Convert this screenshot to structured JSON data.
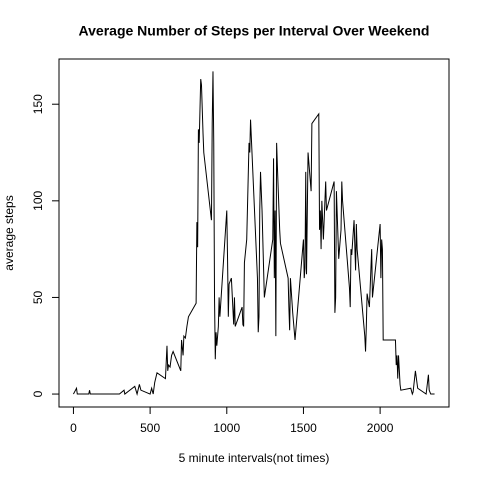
{
  "chart_data": {
    "type": "line",
    "title": "Average Number of Steps per Interval Over Weekend",
    "xlabel": "5 minute intervals(not times)",
    "ylabel": "average steps",
    "x": [
      0,
      20,
      25,
      100,
      105,
      110,
      300,
      330,
      335,
      400,
      415,
      430,
      440,
      500,
      510,
      520,
      530,
      545,
      600,
      610,
      615,
      620,
      630,
      640,
      650,
      700,
      705,
      715,
      720,
      730,
      740,
      750,
      800,
      805,
      810,
      815,
      820,
      830,
      835,
      845,
      850,
      900,
      905,
      910,
      915,
      920,
      925,
      930,
      935,
      945,
      950,
      955,
      1000,
      1005,
      1010,
      1015,
      1030,
      1045,
      1050,
      1055,
      1100,
      1105,
      1110,
      1115,
      1130,
      1145,
      1150,
      1155,
      1200,
      1205,
      1210,
      1215,
      1220,
      1230,
      1245,
      1300,
      1305,
      1310,
      1315,
      1320,
      1325,
      1330,
      1345,
      1350,
      1400,
      1405,
      1410,
      1415,
      1430,
      1445,
      1500,
      1505,
      1510,
      1515,
      1520,
      1530,
      1545,
      1550,
      1555,
      1600,
      1605,
      1610,
      1615,
      1620,
      1630,
      1645,
      1650,
      1700,
      1705,
      1710,
      1715,
      1730,
      1745,
      1750,
      1755,
      1800,
      1805,
      1810,
      1815,
      1830,
      1840,
      1845,
      1850,
      1900,
      1905,
      1910,
      1915,
      1930,
      1945,
      1950,
      2000,
      2005,
      2010,
      2015,
      2020,
      2030,
      2100,
      2105,
      2110,
      2115,
      2120,
      2130,
      2135,
      2200,
      2210,
      2215,
      2230,
      2245,
      2300,
      2315,
      2320,
      2330,
      2355
    ],
    "values": [
      0,
      3,
      0,
      0,
      2,
      0,
      0,
      2,
      0,
      4,
      0,
      5,
      2,
      0,
      3,
      0,
      6,
      11,
      8,
      25,
      12,
      15,
      14,
      20,
      22,
      12,
      28,
      20,
      30,
      29,
      35,
      40,
      47,
      89,
      76,
      137,
      130,
      163,
      160,
      135,
      125,
      90,
      140,
      167,
      130,
      50,
      18,
      32,
      25,
      35,
      50,
      40,
      95,
      70,
      40,
      57,
      60,
      36,
      50,
      35,
      45,
      36,
      35,
      68,
      80,
      130,
      125,
      142,
      60,
      32,
      40,
      95,
      115,
      95,
      50,
      80,
      122,
      60,
      95,
      30,
      130,
      118,
      85,
      78,
      60,
      45,
      33,
      60,
      42,
      28,
      80,
      60,
      65,
      115,
      62,
      125,
      110,
      105,
      140,
      145,
      85,
      95,
      75,
      100,
      80,
      110,
      95,
      110,
      42,
      50,
      105,
      70,
      85,
      110,
      100,
      55,
      45,
      75,
      72,
      90,
      64,
      88,
      75,
      30,
      22,
      35,
      52,
      45,
      75,
      50,
      88,
      60,
      80,
      75,
      28,
      28,
      28,
      15,
      20,
      8,
      20,
      5,
      2,
      3,
      0,
      1,
      12,
      3,
      0,
      10,
      2,
      0,
      0
    ],
    "color": "#000000",
    "xlim": [
      -94.2,
      2449.2
    ],
    "xticks": [
      0,
      500,
      1000,
      1500,
      2000
    ],
    "ylim": [
      -6.7,
      173.4
    ],
    "yticks": [
      0,
      50,
      100,
      150
    ]
  }
}
